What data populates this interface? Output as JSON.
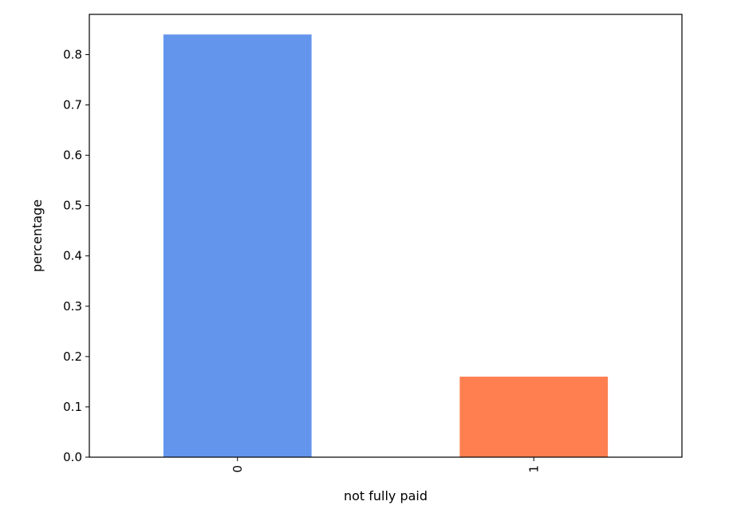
{
  "chart_data": {
    "type": "bar",
    "categories": [
      "0",
      "1"
    ],
    "values": [
      0.84,
      0.16
    ],
    "colors": [
      "#6495ED",
      "#FF7F50"
    ],
    "title": "",
    "xlabel": "not fully paid",
    "ylabel": "percentage",
    "ylim": [
      0,
      0.88
    ],
    "yticks": [
      0.0,
      0.1,
      0.2,
      0.3,
      0.4,
      0.5,
      0.6,
      0.7,
      0.8
    ],
    "ytick_labels": [
      "0.0",
      "0.1",
      "0.2",
      "0.3",
      "0.4",
      "0.5",
      "0.6",
      "0.7",
      "0.8"
    ],
    "xtick_rotation": 90,
    "grid": false,
    "legend": "none"
  }
}
